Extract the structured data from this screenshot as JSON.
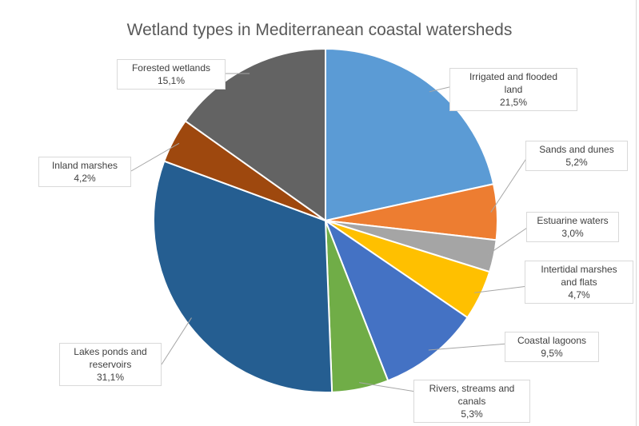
{
  "chart_data": {
    "type": "pie",
    "title": "Wetland types in Mediterranean coastal watersheds",
    "start_angle_deg": 0,
    "direction": "clockwise",
    "slices": [
      {
        "label": "Irrigated and flooded land",
        "value": 21.5,
        "value_label": "21,5%",
        "color": "#5b9bd5"
      },
      {
        "label": "Sands and dunes",
        "value": 5.2,
        "value_label": "5,2%",
        "color": "#ed7d31"
      },
      {
        "label": "Estuarine waters",
        "value": 3.0,
        "value_label": "3,0%",
        "color": "#a5a5a5"
      },
      {
        "label": "Intertidal marshes and flats",
        "value": 4.7,
        "value_label": "4,7%",
        "color": "#ffc000"
      },
      {
        "label": "Coastal lagoons",
        "value": 9.5,
        "value_label": "9,5%",
        "color": "#4472c4"
      },
      {
        "label": "Rivers, streams and canals",
        "value": 5.3,
        "value_label": "5,3%",
        "color": "#70ad47"
      },
      {
        "label": "Lakes ponds and reservoirs",
        "value": 31.1,
        "value_label": "31,1%",
        "color": "#255e91"
      },
      {
        "label": "Inland marshes",
        "value": 4.2,
        "value_label": "4,2%",
        "color": "#9e480e"
      },
      {
        "label": "Forested wetlands",
        "value": 15.1,
        "value_label": "15,1%",
        "color": "#636363"
      }
    ]
  }
}
